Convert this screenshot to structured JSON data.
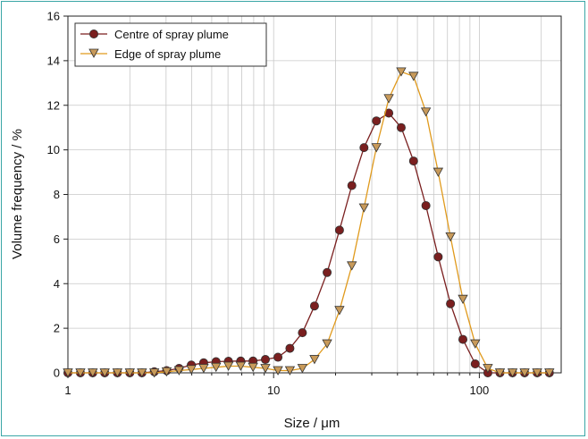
{
  "chart_data": {
    "type": "line",
    "x_scale": "log",
    "xlabel": "Size / μm",
    "ylabel": "Volume frequency / %",
    "xlim": [
      1,
      250
    ],
    "ylim": [
      0,
      16
    ],
    "x_ticks": [
      {
        "v": 1,
        "label": "1"
      },
      {
        "v": 10,
        "label": "10"
      },
      {
        "v": 100,
        "label": "100"
      }
    ],
    "y_ticks": [
      0,
      2,
      4,
      6,
      8,
      10,
      12,
      14,
      16
    ],
    "grid": "on",
    "legend_position": "top-left",
    "series": [
      {
        "name": "Centre of spray plume",
        "color": "#7a1f1f",
        "fill": "#7a1f1f",
        "marker": "circle",
        "x": [
          1,
          1.15,
          1.32,
          1.51,
          1.74,
          2.0,
          2.29,
          2.63,
          3.02,
          3.47,
          3.98,
          4.57,
          5.25,
          6.03,
          6.92,
          7.94,
          9.12,
          10.5,
          12.0,
          13.8,
          15.8,
          18.2,
          20.9,
          24.0,
          27.5,
          31.6,
          36.3,
          41.7,
          47.9,
          55.0,
          63.1,
          72.4,
          83.2,
          95.5,
          110,
          126,
          145,
          166,
          191,
          219
        ],
        "y": [
          0,
          0,
          0,
          0,
          0,
          0,
          0,
          0.05,
          0.1,
          0.2,
          0.35,
          0.45,
          0.5,
          0.52,
          0.53,
          0.53,
          0.6,
          0.7,
          1.1,
          1.8,
          3.0,
          4.5,
          6.4,
          8.4,
          10.1,
          11.3,
          11.65,
          11.0,
          9.5,
          7.5,
          5.2,
          3.1,
          1.5,
          0.4,
          0,
          0,
          0,
          0,
          0,
          0
        ]
      },
      {
        "name": "Edge of spray plume",
        "color": "#e09a1c",
        "fill": "#c89a5a",
        "marker": "triangle-down",
        "x": [
          1,
          1.15,
          1.32,
          1.51,
          1.74,
          2.0,
          2.29,
          2.63,
          3.02,
          3.47,
          3.98,
          4.57,
          5.25,
          6.03,
          6.92,
          7.94,
          9.12,
          10.5,
          12.0,
          13.8,
          15.8,
          18.2,
          20.9,
          24.0,
          27.5,
          31.6,
          36.3,
          41.7,
          47.9,
          55.0,
          63.1,
          72.4,
          83.2,
          95.5,
          110,
          126,
          145,
          166,
          191,
          219
        ],
        "y": [
          0,
          0,
          0,
          0,
          0,
          0,
          0,
          0,
          0.05,
          0.1,
          0.15,
          0.2,
          0.25,
          0.3,
          0.3,
          0.25,
          0.2,
          0.1,
          0.1,
          0.2,
          0.6,
          1.3,
          2.8,
          4.8,
          7.4,
          10.1,
          12.3,
          13.5,
          13.3,
          11.7,
          9.0,
          6.1,
          3.3,
          1.3,
          0.2,
          0,
          0,
          0,
          0,
          0
        ]
      }
    ]
  }
}
